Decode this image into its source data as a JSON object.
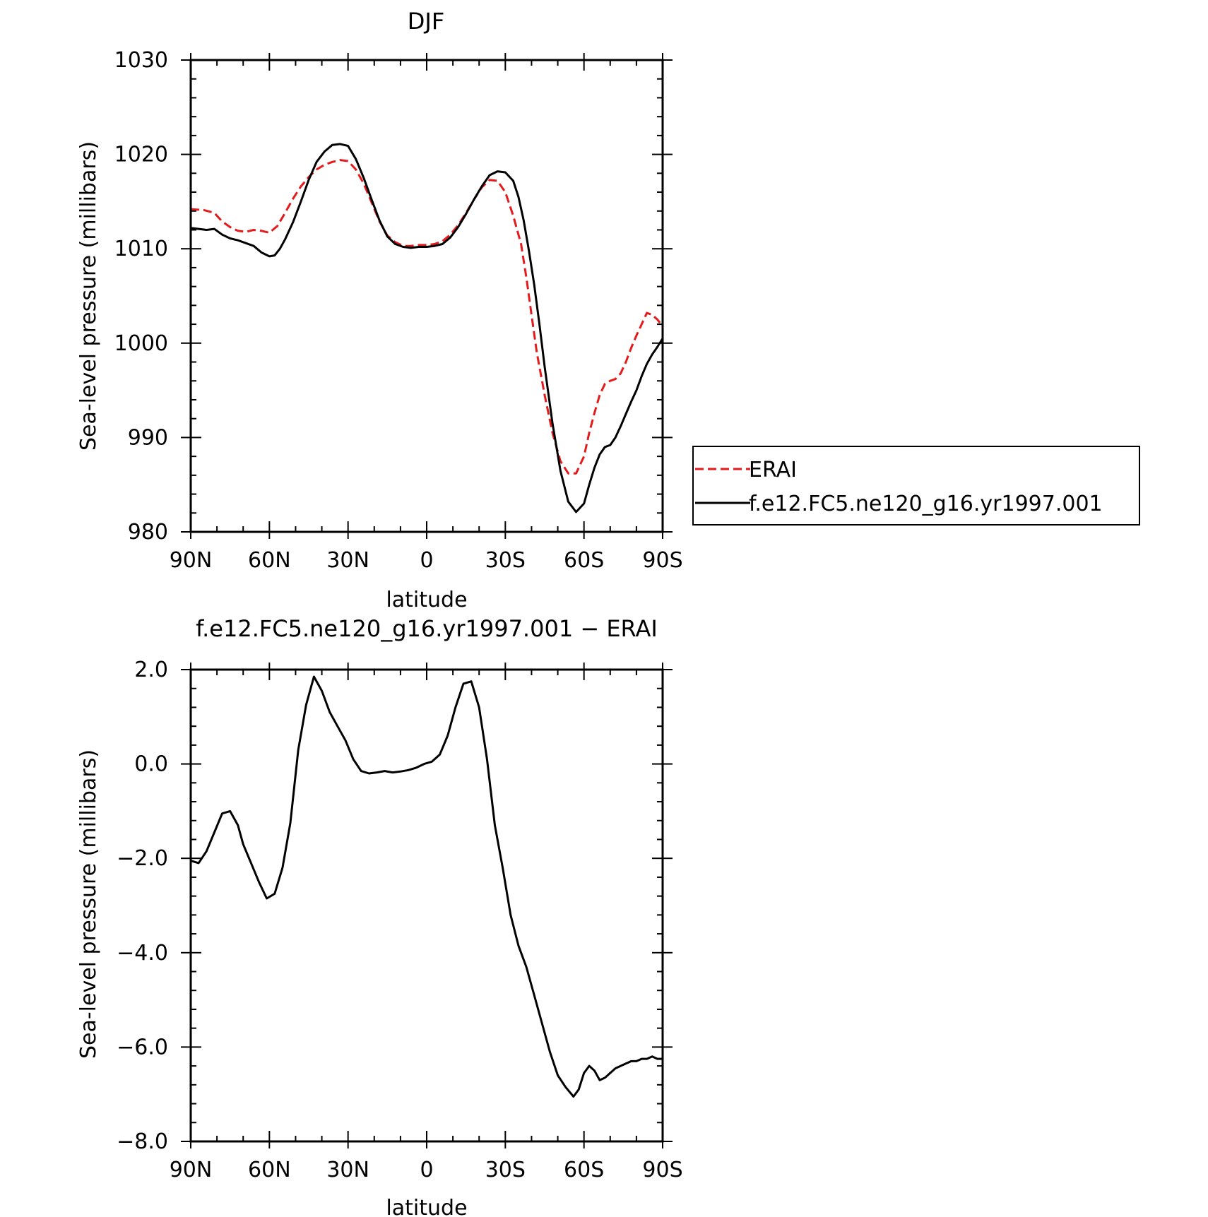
{
  "colors": {
    "erai": "#e41a1c",
    "model": "#000000"
  },
  "chart_data": [
    {
      "type": "line",
      "title": "DJF",
      "xlabel": "latitude",
      "ylabel": "Sea-level pressure (millibars)",
      "xlim": [
        90,
        -90
      ],
      "ylim": [
        980,
        1030
      ],
      "xticks": [
        90,
        60,
        30,
        0,
        -30,
        -60,
        -90
      ],
      "xtick_labels": [
        "90N",
        "60N",
        "30N",
        "0",
        "30S",
        "60S",
        "90S"
      ],
      "yticks": [
        980,
        990,
        1000,
        1010,
        1020,
        1030
      ],
      "ytick_labels": [
        "980",
        "990",
        "1000",
        "1010",
        "1020",
        "1030"
      ],
      "legend": {
        "placement": "outside-right"
      },
      "series": [
        {
          "name": "ERAI",
          "style": "dashed",
          "color": "#e41a1c",
          "x": [
            90,
            85,
            81,
            78,
            75,
            72,
            69,
            66,
            63,
            60,
            57,
            54,
            51,
            48,
            45,
            42,
            39,
            36,
            33,
            30,
            27,
            24,
            21,
            18,
            15,
            12,
            9,
            6,
            3,
            0,
            -3,
            -6,
            -9,
            -12,
            -15,
            -18,
            -21,
            -24,
            -27,
            -30,
            -33,
            -36,
            -38,
            -40,
            -42,
            -45,
            -48,
            -51,
            -54,
            -57,
            -60,
            -62,
            -64,
            -66,
            -68,
            -70,
            -72,
            -74,
            -76,
            -78,
            -80,
            -82,
            -84,
            -86,
            -88,
            -90
          ],
          "y": [
            1014.2,
            1014.1,
            1013.8,
            1012.9,
            1012.3,
            1011.9,
            1011.8,
            1012.0,
            1011.9,
            1011.7,
            1012.4,
            1013.8,
            1015.3,
            1016.6,
            1017.6,
            1018.4,
            1018.9,
            1019.2,
            1019.4,
            1019.3,
            1018.4,
            1016.9,
            1014.9,
            1012.9,
            1011.4,
            1010.7,
            1010.3,
            1010.3,
            1010.4,
            1010.4,
            1010.5,
            1010.8,
            1011.5,
            1012.5,
            1013.8,
            1015.2,
            1016.5,
            1017.3,
            1017.2,
            1016.0,
            1013.5,
            1010.5,
            1007.0,
            1003.0,
            999.0,
            994.5,
            990.5,
            987.5,
            986.2,
            986.2,
            988.0,
            990.5,
            992.6,
            994.5,
            995.7,
            996.0,
            996.2,
            996.8,
            998.0,
            999.5,
            1000.8,
            1002.0,
            1003.2,
            1003.0,
            1002.5,
            1001.8
          ]
        },
        {
          "name": "f.e12.FC5.ne120_g16.yr1997.001",
          "style": "solid",
          "color": "#000000",
          "x": [
            90,
            87,
            84,
            81,
            78,
            75,
            72,
            69,
            66,
            63,
            60,
            58,
            56,
            54,
            51,
            48,
            45,
            42,
            39,
            36,
            33,
            30,
            27,
            24,
            21,
            18,
            15,
            12,
            9,
            6,
            3,
            0,
            -3,
            -6,
            -9,
            -12,
            -15,
            -18,
            -21,
            -24,
            -27,
            -30,
            -33,
            -35,
            -37,
            -39,
            -41,
            -43,
            -45,
            -48,
            -51,
            -54,
            -57,
            -60,
            -62,
            -64,
            -66,
            -68,
            -70,
            -72,
            -74,
            -76,
            -78,
            -80,
            -82,
            -84,
            -86,
            -88,
            -90
          ],
          "y": [
            1012.2,
            1012.1,
            1012.0,
            1012.1,
            1011.5,
            1011.1,
            1010.9,
            1010.6,
            1010.3,
            1009.6,
            1009.2,
            1009.3,
            1010.0,
            1011.0,
            1012.8,
            1015.0,
            1017.3,
            1019.2,
            1020.3,
            1021.0,
            1021.1,
            1020.9,
            1019.5,
            1017.5,
            1015.2,
            1013.0,
            1011.3,
            1010.5,
            1010.2,
            1010.1,
            1010.2,
            1010.2,
            1010.3,
            1010.5,
            1011.2,
            1012.3,
            1013.7,
            1015.2,
            1016.6,
            1017.8,
            1018.2,
            1018.1,
            1017.2,
            1015.5,
            1013.0,
            1009.8,
            1006.2,
            1002.0,
            997.5,
            991.5,
            986.5,
            983.2,
            982.1,
            983.0,
            985.0,
            986.8,
            988.2,
            989.0,
            989.2,
            990.0,
            991.2,
            992.5,
            993.8,
            995.0,
            996.5,
            997.8,
            998.8,
            999.6,
            1000.5
          ]
        }
      ]
    },
    {
      "type": "line",
      "title": "f.e12.FC5.ne120_g16.yr1997.001 − ERAI",
      "xlabel": "latitude",
      "ylabel": "Sea-level pressure (millibars)",
      "xlim": [
        90,
        -90
      ],
      "ylim": [
        -8.0,
        2.0
      ],
      "xticks": [
        90,
        60,
        30,
        0,
        -30,
        -60,
        -90
      ],
      "xtick_labels": [
        "90N",
        "60N",
        "30N",
        "0",
        "30S",
        "60S",
        "90S"
      ],
      "yticks": [
        -8.0,
        -6.0,
        -4.0,
        -2.0,
        0.0,
        2.0
      ],
      "ytick_labels": [
        "−8.0",
        "−6.0",
        "−4.0",
        "−2.0",
        "0.0",
        "2.0"
      ],
      "series": [
        {
          "style": "solid",
          "color": "#000000",
          "x": [
            90,
            87,
            84,
            81,
            78,
            75,
            72,
            70,
            67,
            64,
            61,
            58,
            55,
            52,
            49,
            46,
            43,
            40,
            37,
            34,
            31,
            28,
            25,
            22,
            19,
            16,
            13,
            10,
            7,
            4,
            1,
            -2,
            -5,
            -8,
            -11,
            -14,
            -17,
            -20,
            -23,
            -26,
            -29,
            -32,
            -35,
            -38,
            -41,
            -44,
            -47,
            -50,
            -53,
            -56,
            -58,
            -60,
            -62,
            -64,
            -66,
            -68,
            -70,
            -72,
            -74,
            -76,
            -78,
            -80,
            -82,
            -84,
            -86,
            -88,
            -90
          ],
          "y": [
            -2.05,
            -2.1,
            -1.85,
            -1.45,
            -1.05,
            -1.0,
            -1.3,
            -1.7,
            -2.1,
            -2.5,
            -2.85,
            -2.75,
            -2.2,
            -1.25,
            0.3,
            1.25,
            1.85,
            1.55,
            1.1,
            0.8,
            0.5,
            0.1,
            -0.15,
            -0.2,
            -0.18,
            -0.15,
            -0.18,
            -0.16,
            -0.13,
            -0.08,
            0.0,
            0.05,
            0.2,
            0.6,
            1.2,
            1.7,
            1.75,
            1.2,
            0.1,
            -1.3,
            -2.2,
            -3.2,
            -3.85,
            -4.3,
            -4.9,
            -5.5,
            -6.1,
            -6.6,
            -6.85,
            -7.05,
            -6.9,
            -6.55,
            -6.4,
            -6.5,
            -6.7,
            -6.65,
            -6.55,
            -6.45,
            -6.4,
            -6.35,
            -6.3,
            -6.3,
            -6.25,
            -6.25,
            -6.2,
            -6.25,
            -6.25
          ]
        }
      ]
    }
  ]
}
